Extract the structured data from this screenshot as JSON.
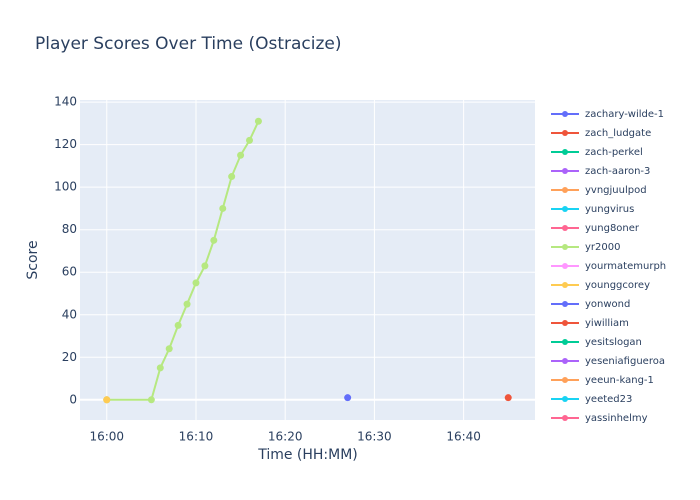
{
  "chart_data": {
    "type": "line",
    "title": "Player Scores Over Time (Ostracize)",
    "x_label": "Time (HH:MM)",
    "y_label": "Score",
    "xlim": [
      "15:57",
      "16:48"
    ],
    "xticks": [
      "16:00",
      "16:10",
      "16:20",
      "16:30",
      "16:40"
    ],
    "ylim": [
      -9.5,
      141
    ],
    "yticks": [
      0,
      20,
      40,
      60,
      80,
      100,
      120,
      140
    ],
    "grid": true,
    "legend": "right",
    "series": [
      {
        "name": "zachary-wilde-1",
        "color": "#636efa",
        "x": [
          "16:27"
        ],
        "values": [
          1
        ]
      },
      {
        "name": "zach_ludgate",
        "color": "#ef553b",
        "x": [
          "16:45"
        ],
        "values": [
          1
        ]
      },
      {
        "name": "zach-perkel",
        "color": "#00cc96",
        "x": [],
        "values": []
      },
      {
        "name": "zach-aaron-3",
        "color": "#ab63fa",
        "x": [],
        "values": []
      },
      {
        "name": "yvngjuulpod",
        "color": "#ffa15a",
        "x": [
          "16:00"
        ],
        "values": [
          0
        ]
      },
      {
        "name": "yungvirus",
        "color": "#19d3f3",
        "x": [],
        "values": []
      },
      {
        "name": "yung8oner",
        "color": "#ff6692",
        "x": [],
        "values": []
      },
      {
        "name": "yr2000",
        "color": "#b6e880",
        "x": [
          "16:00",
          "16:05",
          "16:06",
          "16:07",
          "16:08",
          "16:09",
          "16:10",
          "16:11",
          "16:12",
          "16:13",
          "16:14",
          "16:15",
          "16:16",
          "16:17"
        ],
        "values": [
          0,
          0,
          15,
          24,
          35,
          45,
          55,
          63,
          75,
          90,
          105,
          115,
          122,
          131
        ]
      },
      {
        "name": "yourmatemurph",
        "color": "#ff97ff",
        "x": [],
        "values": []
      },
      {
        "name": "younggcorey",
        "color": "#fecb52",
        "x": [
          "16:00"
        ],
        "values": [
          0
        ]
      },
      {
        "name": "yonwond",
        "color": "#636efa",
        "x": [],
        "values": []
      },
      {
        "name": "yiwilliam",
        "color": "#ef553b",
        "x": [],
        "values": []
      },
      {
        "name": "yesitslogan",
        "color": "#00cc96",
        "x": [],
        "values": []
      },
      {
        "name": "yeseniafigueroa",
        "color": "#ab63fa",
        "x": [],
        "values": []
      },
      {
        "name": "yeeun-kang-1",
        "color": "#ffa15a",
        "x": [],
        "values": []
      },
      {
        "name": "yeeted23",
        "color": "#19d3f3",
        "x": [],
        "values": []
      },
      {
        "name": "yassinhelmy",
        "color": "#ff6692",
        "x": [],
        "values": []
      }
    ]
  }
}
